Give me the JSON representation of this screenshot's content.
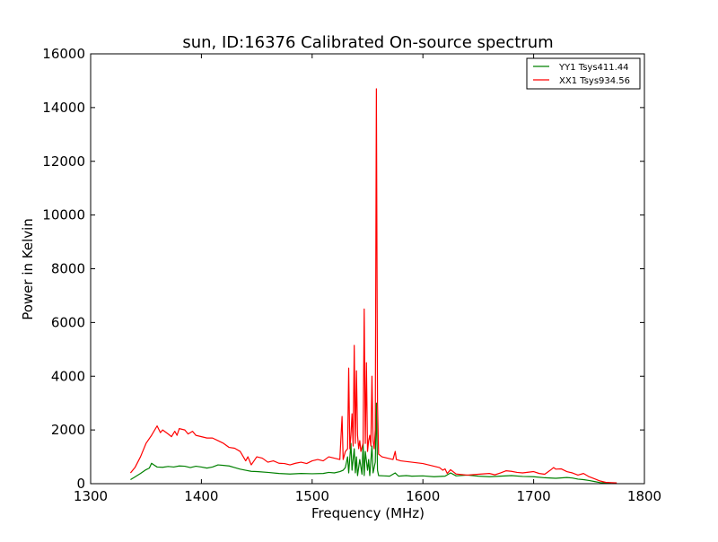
{
  "chart_data": {
    "type": "line",
    "title": "sun, ID:16376 Calibrated On-source spectrum",
    "xlabel": "Frequency (MHz)",
    "ylabel": "Power in Kelvin",
    "xlim": [
      1300,
      1800
    ],
    "ylim": [
      0,
      16000
    ],
    "x_ticks": [
      1300,
      1400,
      1500,
      1600,
      1700,
      1800
    ],
    "y_ticks": [
      0,
      2000,
      4000,
      6000,
      8000,
      10000,
      12000,
      14000,
      16000
    ],
    "grid": false,
    "legend_position": "top-right",
    "series": [
      {
        "name": "YY1 Tsys411.44",
        "color": "#008000",
        "points": [
          [
            1336,
            150
          ],
          [
            1340,
            250
          ],
          [
            1345,
            380
          ],
          [
            1350,
            520
          ],
          [
            1353,
            580
          ],
          [
            1355,
            760
          ],
          [
            1357,
            700
          ],
          [
            1360,
            620
          ],
          [
            1365,
            610
          ],
          [
            1370,
            640
          ],
          [
            1375,
            620
          ],
          [
            1380,
            660
          ],
          [
            1385,
            650
          ],
          [
            1390,
            600
          ],
          [
            1395,
            650
          ],
          [
            1400,
            620
          ],
          [
            1405,
            580
          ],
          [
            1410,
            620
          ],
          [
            1415,
            700
          ],
          [
            1420,
            680
          ],
          [
            1425,
            660
          ],
          [
            1430,
            600
          ],
          [
            1435,
            540
          ],
          [
            1440,
            500
          ],
          [
            1445,
            460
          ],
          [
            1450,
            450
          ],
          [
            1460,
            420
          ],
          [
            1470,
            380
          ],
          [
            1480,
            360
          ],
          [
            1490,
            380
          ],
          [
            1500,
            370
          ],
          [
            1510,
            380
          ],
          [
            1515,
            420
          ],
          [
            1520,
            400
          ],
          [
            1525,
            450
          ],
          [
            1528,
            500
          ],
          [
            1530,
            600
          ],
          [
            1532,
            1000
          ],
          [
            1533,
            400
          ],
          [
            1535,
            1500
          ],
          [
            1536,
            500
          ],
          [
            1538,
            1300
          ],
          [
            1539,
            400
          ],
          [
            1540,
            1000
          ],
          [
            1541,
            300
          ],
          [
            1543,
            900
          ],
          [
            1545,
            350
          ],
          [
            1546,
            1500
          ],
          [
            1547,
            300
          ],
          [
            1548,
            1200
          ],
          [
            1550,
            500
          ],
          [
            1551,
            900
          ],
          [
            1552,
            300
          ],
          [
            1554,
            1400
          ],
          [
            1555,
            400
          ],
          [
            1557,
            800
          ],
          [
            1558,
            3000
          ],
          [
            1559,
            500
          ],
          [
            1560,
            300
          ],
          [
            1565,
            290
          ],
          [
            1570,
            280
          ],
          [
            1575,
            400
          ],
          [
            1578,
            280
          ],
          [
            1585,
            300
          ],
          [
            1590,
            280
          ],
          [
            1600,
            290
          ],
          [
            1610,
            260
          ],
          [
            1620,
            280
          ],
          [
            1625,
            400
          ],
          [
            1630,
            290
          ],
          [
            1640,
            320
          ],
          [
            1650,
            280
          ],
          [
            1660,
            260
          ],
          [
            1670,
            280
          ],
          [
            1680,
            300
          ],
          [
            1690,
            270
          ],
          [
            1700,
            260
          ],
          [
            1710,
            220
          ],
          [
            1720,
            200
          ],
          [
            1730,
            230
          ],
          [
            1735,
            210
          ],
          [
            1740,
            170
          ],
          [
            1745,
            150
          ],
          [
            1750,
            120
          ],
          [
            1755,
            80
          ],
          [
            1760,
            40
          ],
          [
            1765,
            20
          ],
          [
            1770,
            10
          ],
          [
            1775,
            5
          ]
        ]
      },
      {
        "name": "XX1 Tsys934.56",
        "color": "#ff0000",
        "points": [
          [
            1336,
            400
          ],
          [
            1340,
            600
          ],
          [
            1345,
            1000
          ],
          [
            1350,
            1500
          ],
          [
            1355,
            1800
          ],
          [
            1360,
            2150
          ],
          [
            1363,
            1900
          ],
          [
            1365,
            2000
          ],
          [
            1370,
            1850
          ],
          [
            1373,
            1750
          ],
          [
            1376,
            1950
          ],
          [
            1378,
            1800
          ],
          [
            1380,
            2050
          ],
          [
            1385,
            2000
          ],
          [
            1388,
            1850
          ],
          [
            1392,
            1950
          ],
          [
            1395,
            1800
          ],
          [
            1400,
            1750
          ],
          [
            1405,
            1700
          ],
          [
            1410,
            1700
          ],
          [
            1415,
            1600
          ],
          [
            1420,
            1500
          ],
          [
            1425,
            1350
          ],
          [
            1430,
            1320
          ],
          [
            1435,
            1200
          ],
          [
            1440,
            850
          ],
          [
            1442,
            1000
          ],
          [
            1445,
            700
          ],
          [
            1450,
            1000
          ],
          [
            1455,
            950
          ],
          [
            1460,
            800
          ],
          [
            1465,
            850
          ],
          [
            1470,
            760
          ],
          [
            1475,
            750
          ],
          [
            1480,
            700
          ],
          [
            1485,
            760
          ],
          [
            1490,
            800
          ],
          [
            1495,
            750
          ],
          [
            1500,
            850
          ],
          [
            1505,
            900
          ],
          [
            1510,
            850
          ],
          [
            1515,
            1000
          ],
          [
            1520,
            950
          ],
          [
            1525,
            900
          ],
          [
            1527,
            2500
          ],
          [
            1528,
            900
          ],
          [
            1530,
            1200
          ],
          [
            1532,
            1300
          ],
          [
            1533,
            4300
          ],
          [
            1534,
            1300
          ],
          [
            1535,
            1800
          ],
          [
            1536,
            2600
          ],
          [
            1537,
            1400
          ],
          [
            1538,
            5150
          ],
          [
            1539,
            1500
          ],
          [
            1540,
            4200
          ],
          [
            1541,
            1800
          ],
          [
            1542,
            1300
          ],
          [
            1543,
            1600
          ],
          [
            1544,
            1200
          ],
          [
            1546,
            1500
          ],
          [
            1547,
            6500
          ],
          [
            1548,
            1500
          ],
          [
            1549,
            4500
          ],
          [
            1550,
            1200
          ],
          [
            1551,
            1600
          ],
          [
            1552,
            1800
          ],
          [
            1553,
            1400
          ],
          [
            1554,
            4000
          ],
          [
            1555,
            1600
          ],
          [
            1556,
            1300
          ],
          [
            1557,
            2000
          ],
          [
            1558,
            14700
          ],
          [
            1559,
            3000
          ],
          [
            1560,
            1100
          ],
          [
            1563,
            1000
          ],
          [
            1568,
            950
          ],
          [
            1573,
            900
          ],
          [
            1575,
            1200
          ],
          [
            1576,
            900
          ],
          [
            1580,
            850
          ],
          [
            1590,
            800
          ],
          [
            1600,
            750
          ],
          [
            1605,
            700
          ],
          [
            1610,
            650
          ],
          [
            1615,
            600
          ],
          [
            1618,
            500
          ],
          [
            1620,
            550
          ],
          [
            1622,
            380
          ],
          [
            1625,
            520
          ],
          [
            1630,
            360
          ],
          [
            1640,
            320
          ],
          [
            1650,
            350
          ],
          [
            1660,
            380
          ],
          [
            1665,
            330
          ],
          [
            1670,
            400
          ],
          [
            1675,
            480
          ],
          [
            1680,
            460
          ],
          [
            1685,
            420
          ],
          [
            1690,
            400
          ],
          [
            1700,
            450
          ],
          [
            1705,
            380
          ],
          [
            1710,
            350
          ],
          [
            1715,
            500
          ],
          [
            1718,
            600
          ],
          [
            1720,
            540
          ],
          [
            1725,
            550
          ],
          [
            1730,
            450
          ],
          [
            1735,
            400
          ],
          [
            1740,
            320
          ],
          [
            1745,
            380
          ],
          [
            1750,
            260
          ],
          [
            1755,
            180
          ],
          [
            1760,
            100
          ],
          [
            1765,
            50
          ],
          [
            1770,
            40
          ],
          [
            1775,
            30
          ]
        ]
      }
    ]
  }
}
